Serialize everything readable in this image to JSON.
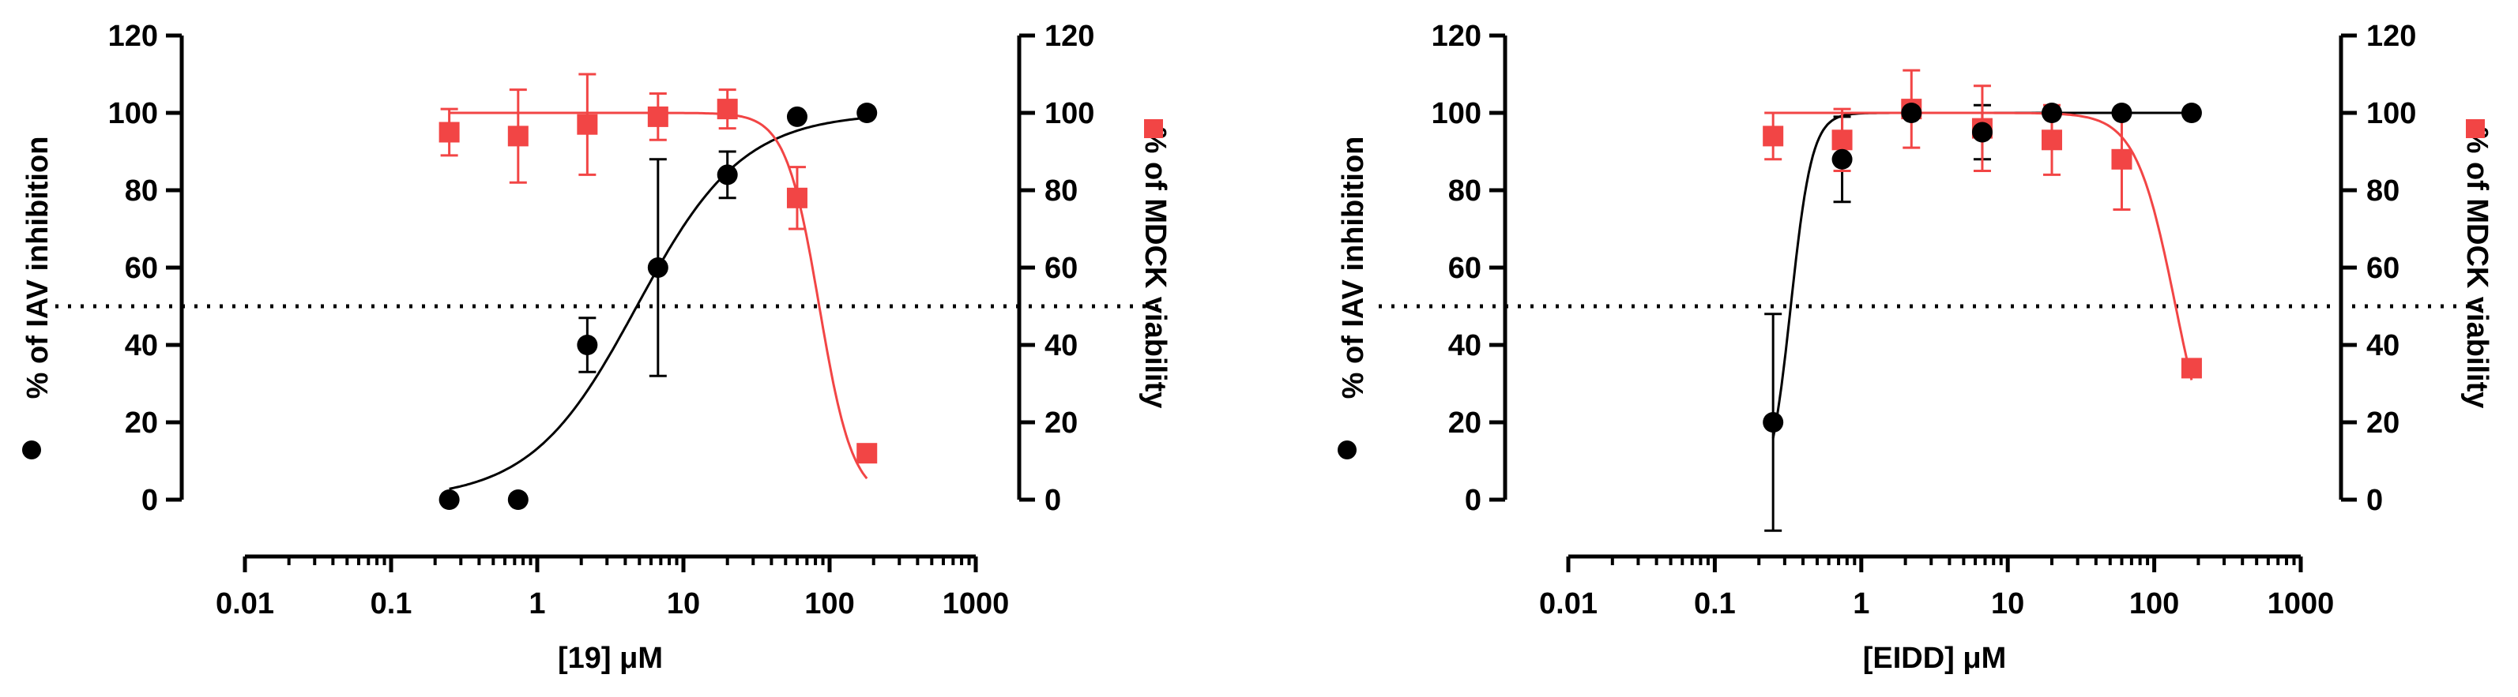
{
  "colors": {
    "inhibition": "#000000",
    "viability": "#f24545"
  },
  "chart_data": [
    {
      "type": "scatter",
      "x_scale": "log",
      "xlabel": "[19] μM",
      "ylabel_left": "% of IAV inhibition",
      "ylabel_right": "% of MDCK viability",
      "x_ticks": [
        "0.01",
        "0.1",
        "1",
        "10",
        "100",
        "1000"
      ],
      "y_ticks": [
        "0",
        "20",
        "40",
        "60",
        "80",
        "100",
        "120"
      ],
      "xlim": [
        0.01,
        1000
      ],
      "ylim": [
        0,
        120
      ],
      "reference_line_y": 50,
      "grid": false,
      "series": [
        {
          "marker": "circle",
          "color": "#000000",
          "x": [
            0.25,
            0.74,
            2.2,
            6.7,
            20,
            60,
            180
          ],
          "y": [
            0,
            0,
            40,
            60,
            84,
            99,
            100
          ],
          "err": [
            0,
            0,
            7,
            28,
            6,
            0,
            0
          ],
          "fit": {
            "bottom": 0,
            "top": 100,
            "ec50": 4.8,
            "hill": 1.2
          }
        },
        {
          "marker": "square",
          "color": "#f24545",
          "x": [
            0.25,
            0.74,
            2.2,
            6.7,
            20,
            60,
            180
          ],
          "y": [
            95,
            94,
            97,
            99,
            101,
            78,
            12
          ],
          "err": [
            6,
            12,
            13,
            6,
            5,
            8,
            0
          ],
          "fit": {
            "bottom": 0,
            "top": 100,
            "ec50": 85,
            "hill": -3.8
          }
        }
      ]
    },
    {
      "type": "scatter",
      "x_scale": "log",
      "xlabel": "[EIDD] μM",
      "ylabel_left": "% of IAV inhibition",
      "ylabel_right": "% of MDCK viability",
      "x_ticks": [
        "0.01",
        "0.1",
        "1",
        "10",
        "100",
        "1000"
      ],
      "y_ticks": [
        "0",
        "20",
        "40",
        "60",
        "80",
        "100",
        "120"
      ],
      "xlim": [
        0.01,
        1000
      ],
      "ylim": [
        0,
        120
      ],
      "reference_line_y": 50,
      "grid": false,
      "series": [
        {
          "marker": "circle",
          "color": "#000000",
          "x": [
            0.25,
            0.74,
            2.2,
            6.7,
            20,
            60,
            180
          ],
          "y": [
            20,
            88,
            100,
            95,
            100,
            100,
            100
          ],
          "err": [
            28,
            11,
            0,
            7,
            0,
            0,
            0
          ],
          "fit": {
            "bottom": 0,
            "top": 100,
            "ec50": 0.33,
            "hill": 6
          }
        },
        {
          "marker": "square",
          "color": "#f24545",
          "x": [
            0.25,
            0.74,
            2.2,
            6.7,
            20,
            60,
            180
          ],
          "y": [
            94,
            93,
            101,
            96,
            93,
            88,
            34
          ],
          "err": [
            6,
            8,
            10,
            11,
            9,
            13,
            0
          ],
          "fit": {
            "bottom": 0,
            "top": 100,
            "ec50": 140,
            "hill": -3.2
          }
        }
      ]
    }
  ]
}
